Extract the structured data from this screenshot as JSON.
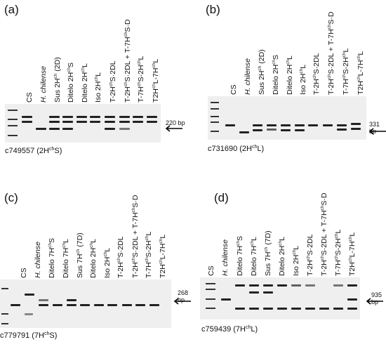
{
  "panels": [
    {
      "label": "(a)",
      "bp": "220 bp",
      "caption": {
        "main": "c749557 (2H",
        "sup": "ch",
        "end": "S)"
      },
      "lanes": [
        [
          {
            "t": "CS"
          }
        ],
        [
          {
            "t": "H. chilense",
            "i": true
          }
        ],
        [
          {
            "t": "Sus 2H"
          },
          {
            "t": "ch",
            "s": 1
          },
          {
            "t": " (2D)"
          }
        ],
        [
          {
            "t": "Ditelo 2H"
          },
          {
            "t": "ch",
            "s": 1
          },
          {
            "t": "S"
          }
        ],
        [
          {
            "t": "Ditelo 2H"
          },
          {
            "t": "ch",
            "s": 1
          },
          {
            "t": "L"
          }
        ],
        [
          {
            "t": "Iso 2H"
          },
          {
            "t": "ch",
            "s": 1
          },
          {
            "t": "L"
          }
        ],
        [
          {
            "t": "T-2H"
          },
          {
            "t": "ch",
            "s": 1
          },
          {
            "t": "S·2DL"
          }
        ],
        [
          {
            "t": "T-2H"
          },
          {
            "t": "ch",
            "s": 1
          },
          {
            "t": "S·2DL + T-7H"
          },
          {
            "t": "ch",
            "s": 1
          },
          {
            "t": "S·D"
          }
        ],
        [
          {
            "t": "T-7H"
          },
          {
            "t": "ch",
            "s": 1
          },
          {
            "t": "S-2H"
          },
          {
            "t": "ch",
            "s": 1
          },
          {
            "t": "L"
          }
        ],
        [
          {
            "t": "T2H"
          },
          {
            "t": "ch",
            "s": 1
          },
          {
            "t": "L-7H"
          },
          {
            "t": "ch",
            "s": 1
          },
          {
            "t": "L"
          }
        ]
      ]
    },
    {
      "label": "(b)",
      "bp": "331 bp",
      "caption": {
        "main": "c731690 (2H",
        "sup": "ch",
        "end": "L)"
      },
      "lanes": [
        [
          {
            "t": "CS"
          }
        ],
        [
          {
            "t": "H. chilense",
            "i": true
          }
        ],
        [
          {
            "t": "Sus 2H"
          },
          {
            "t": "ch",
            "s": 1
          },
          {
            "t": " (2D)"
          }
        ],
        [
          {
            "t": "Ditelo 2H"
          },
          {
            "t": "ch",
            "s": 1
          },
          {
            "t": "S"
          }
        ],
        [
          {
            "t": "Ditelo 2H"
          },
          {
            "t": "ch",
            "s": 1
          },
          {
            "t": "L"
          }
        ],
        [
          {
            "t": "Iso 2H"
          },
          {
            "t": "ch",
            "s": 1
          },
          {
            "t": "L"
          }
        ],
        [
          {
            "t": "T-2H"
          },
          {
            "t": "ch",
            "s": 1
          },
          {
            "t": "S·2DL"
          }
        ],
        [
          {
            "t": "T-2H"
          },
          {
            "t": "ch",
            "s": 1
          },
          {
            "t": "S·2DL + T-7H"
          },
          {
            "t": "ch",
            "s": 1
          },
          {
            "t": "S·D"
          }
        ],
        [
          {
            "t": "T-7H"
          },
          {
            "t": "ch",
            "s": 1
          },
          {
            "t": "S-2H"
          },
          {
            "t": "ch",
            "s": 1
          },
          {
            "t": "L"
          }
        ],
        [
          {
            "t": "T2H"
          },
          {
            "t": "ch",
            "s": 1
          },
          {
            "t": "L-7H"
          },
          {
            "t": "ch",
            "s": 1
          },
          {
            "t": "L"
          }
        ]
      ]
    },
    {
      "label": "(c)",
      "bp": "268 bp",
      "caption": {
        "main": "c779791 (7H",
        "sup": "ch",
        "end": "S)"
      },
      "lanes": [
        [
          {
            "t": "CS"
          }
        ],
        [
          {
            "t": "H. chilense",
            "i": true
          }
        ],
        [
          {
            "t": "Ditelo 7H"
          },
          {
            "t": "ch",
            "s": 1
          },
          {
            "t": "S"
          }
        ],
        [
          {
            "t": "Ditelo 7H"
          },
          {
            "t": "ch",
            "s": 1
          },
          {
            "t": "L"
          }
        ],
        [
          {
            "t": "Sus 7H"
          },
          {
            "t": "ch",
            "s": 1
          },
          {
            "t": " (7D)"
          }
        ],
        [
          {
            "t": "Ditelo 2H"
          },
          {
            "t": "ch",
            "s": 1
          },
          {
            "t": "L"
          }
        ],
        [
          {
            "t": "Iso 2H"
          },
          {
            "t": "ch",
            "s": 1
          },
          {
            "t": "L"
          }
        ],
        [
          {
            "t": "T-2H"
          },
          {
            "t": "ch",
            "s": 1
          },
          {
            "t": "S·2DL"
          }
        ],
        [
          {
            "t": "T-2H"
          },
          {
            "t": "ch",
            "s": 1
          },
          {
            "t": "S·2DL + T-7H"
          },
          {
            "t": "ch",
            "s": 1
          },
          {
            "t": "S·D"
          }
        ],
        [
          {
            "t": "T-7H"
          },
          {
            "t": "ch",
            "s": 1
          },
          {
            "t": "S-2H"
          },
          {
            "t": "ch",
            "s": 1
          },
          {
            "t": "L"
          }
        ],
        [
          {
            "t": "T2H"
          },
          {
            "t": "ch",
            "s": 1
          },
          {
            "t": "L-7H"
          },
          {
            "t": "ch",
            "s": 1
          },
          {
            "t": "L"
          }
        ]
      ]
    },
    {
      "label": "(d)",
      "bp": "935 bp",
      "caption": {
        "main": "c759439 (7H",
        "sup": "ch",
        "end": "L)"
      },
      "lanes": [
        [
          {
            "t": "CS"
          }
        ],
        [
          {
            "t": "H. chilense",
            "i": true
          }
        ],
        [
          {
            "t": "Ditelo 7H"
          },
          {
            "t": "ch",
            "s": 1
          },
          {
            "t": "S"
          }
        ],
        [
          {
            "t": "Ditelo 7H"
          },
          {
            "t": "ch",
            "s": 1
          },
          {
            "t": "L"
          }
        ],
        [
          {
            "t": "Sus 7H"
          },
          {
            "t": "ch",
            "s": 1
          },
          {
            "t": " (7D)"
          }
        ],
        [
          {
            "t": "Ditelo 2H"
          },
          {
            "t": "ch",
            "s": 1
          },
          {
            "t": "L"
          }
        ],
        [
          {
            "t": "Iso 2H"
          },
          {
            "t": "ch",
            "s": 1
          },
          {
            "t": "L"
          }
        ],
        [
          {
            "t": "T-2H"
          },
          {
            "t": "ch",
            "s": 1
          },
          {
            "t": "S·2DL"
          }
        ],
        [
          {
            "t": "T-2H"
          },
          {
            "t": "ch",
            "s": 1
          },
          {
            "t": "S·2DL + T-7H"
          },
          {
            "t": "ch",
            "s": 1
          },
          {
            "t": "S·D"
          }
        ],
        [
          {
            "t": "T-7H"
          },
          {
            "t": "ch",
            "s": 1
          },
          {
            "t": "S-2H"
          },
          {
            "t": "ch",
            "s": 1
          },
          {
            "t": "L"
          }
        ],
        [
          {
            "t": "T2H"
          },
          {
            "t": "ch",
            "s": 1
          },
          {
            "t": "L-7H"
          },
          {
            "t": "ch",
            "s": 1
          },
          {
            "t": "L"
          }
        ]
      ]
    }
  ]
}
